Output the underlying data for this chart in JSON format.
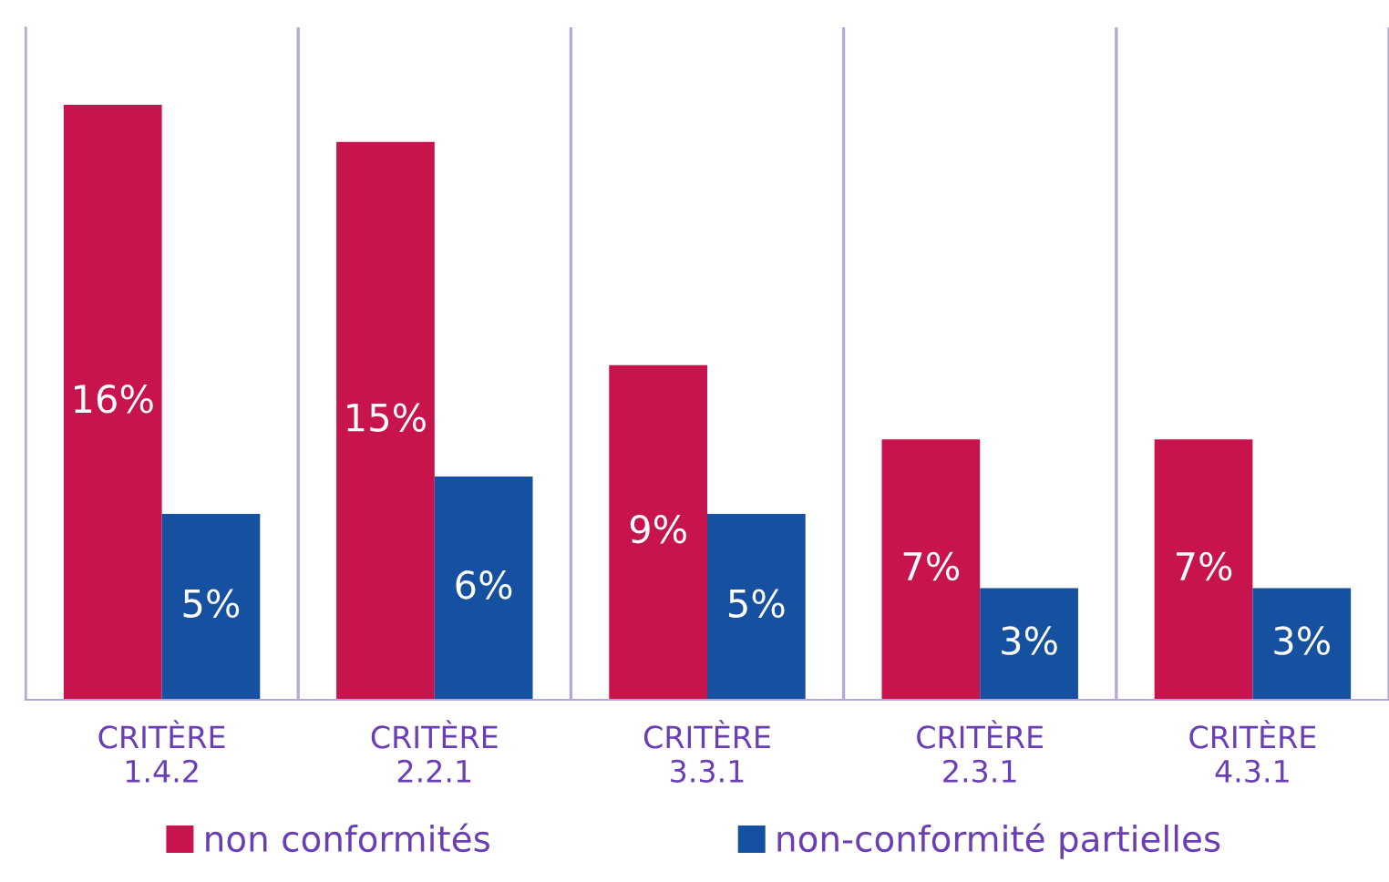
{
  "chart_data": {
    "type": "bar",
    "categories": [
      "CRITÈRE\n1.4.2",
      "CRITÈRE\n2.2.1",
      "CRITÈRE\n3.3.1",
      "CRITÈRE\n2.3.1",
      "CRITÈRE\n4.3.1"
    ],
    "series": [
      {
        "name": "non conformités",
        "color": "#c8144c",
        "values": [
          16,
          15,
          9,
          7,
          7
        ],
        "value_labels": [
          "16%",
          "15%",
          "9%",
          "7%",
          "7%"
        ]
      },
      {
        "name": "non-conformité partielles",
        "color": "#1650a0",
        "values": [
          5,
          6,
          5,
          3,
          3
        ],
        "value_labels": [
          "5%",
          "6%",
          "5%",
          "3%",
          "3%"
        ]
      }
    ],
    "legend": "bottom",
    "grid": "x"
  }
}
